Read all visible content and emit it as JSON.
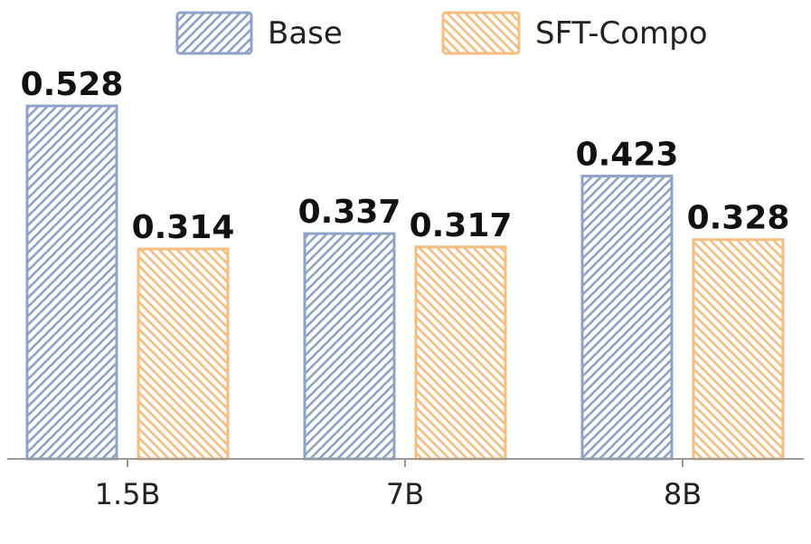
{
  "chart_data": {
    "type": "bar",
    "categories": [
      "1.5B",
      "7B",
      "8B"
    ],
    "series": [
      {
        "name": "Base",
        "values": [
          0.528,
          0.337,
          0.423
        ],
        "color": "#8fa3c8",
        "hatch": "diagonal-up"
      },
      {
        "name": "SFT-Compo",
        "values": [
          0.314,
          0.317,
          0.328
        ],
        "color": "#f5bd80",
        "hatch": "diagonal-down"
      }
    ],
    "value_labels": [
      [
        "0.528",
        "0.337",
        "0.423"
      ],
      [
        "0.314",
        "0.317",
        "0.328"
      ]
    ],
    "title": "",
    "xlabel": "",
    "ylabel": "",
    "ylim": [
      0,
      0.528
    ],
    "grid": false,
    "legend_position": "top-center"
  }
}
